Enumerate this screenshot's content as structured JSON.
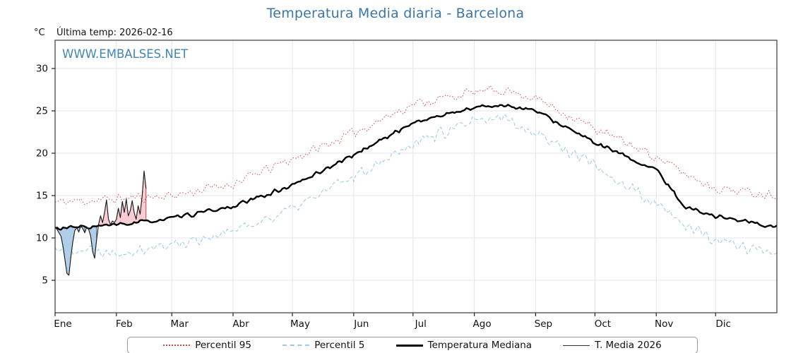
{
  "page": {
    "ylabel_unit": "°C",
    "last_temp_text": "Última temp: 2026-02-16",
    "watermark": "WWW.EMBALSES.NET"
  },
  "chart_data": {
    "type": "line",
    "title": "Temperatura Media diaria - Barcelona",
    "xlabel": "",
    "ylabel": "°C",
    "ylim": [
      3,
      33
    ],
    "x_range_days": [
      0,
      365
    ],
    "grid": true,
    "legend_position": "bottom",
    "x_tick_labels": [
      "Ene",
      "Feb",
      "Mar",
      "Abr",
      "May",
      "Jun",
      "Jul",
      "Ago",
      "Sep",
      "Oct",
      "Nov",
      "Dic"
    ],
    "month_start_days": [
      0,
      31,
      59,
      90,
      120,
      151,
      181,
      212,
      243,
      273,
      304,
      334
    ],
    "y_ticks": [
      5,
      10,
      15,
      20,
      25,
      30
    ],
    "control_days": [
      0,
      31,
      59,
      90,
      120,
      151,
      181,
      212,
      227,
      243,
      273,
      304,
      319,
      334,
      364
    ],
    "series": [
      {
        "name": "Percentil 95",
        "kind": "control",
        "color": "#e04040",
        "style": "dotted",
        "noise": 0.7,
        "values": [
          14.2,
          14.6,
          15.0,
          16.4,
          19.3,
          22.4,
          25.8,
          27.2,
          27.5,
          26.5,
          22.9,
          19.6,
          17.5,
          15.9,
          15.1
        ]
      },
      {
        "name": "Percentil 5",
        "kind": "control",
        "color": "#96cbe0",
        "style": "dashed",
        "noise": 0.85,
        "values": [
          9.0,
          8.4,
          9.2,
          10.8,
          13.4,
          17.3,
          21.3,
          23.6,
          24.2,
          22.4,
          18.6,
          13.8,
          11.5,
          9.6,
          8.3
        ]
      },
      {
        "name": "Temperatura Mediana",
        "kind": "control",
        "color": "#000000",
        "style": "solid-thick",
        "noise": 0.3,
        "values": [
          11.1,
          11.5,
          12.3,
          13.7,
          16.2,
          19.8,
          23.6,
          25.4,
          25.7,
          25.0,
          21.2,
          18.0,
          13.6,
          12.6,
          11.3
        ]
      },
      {
        "name": "T. Media 2026",
        "kind": "daily",
        "color": "#1a1a1a",
        "style": "solid-thin",
        "start_day": 0,
        "values": [
          11.3,
          11.0,
          10.6,
          10.2,
          9.0,
          7.4,
          5.8,
          5.6,
          7.8,
          9.6,
          10.9,
          11.2,
          10.7,
          11.4,
          11.1,
          10.6,
          11.3,
          11.0,
          10.2,
          8.4,
          7.6,
          9.8,
          11.6,
          12.6,
          11.8,
          13.0,
          14.5,
          12.2,
          11.6,
          12.0,
          11.8,
          12.2,
          13.5,
          12.4,
          14.3,
          13.0,
          14.6,
          12.6,
          13.2,
          14.4,
          13.0,
          12.2,
          13.8,
          12.8,
          14.9,
          17.9,
          15.8
        ]
      }
    ],
    "fills": {
      "above_median_color": "#f6c6ce",
      "above_median_edge": "#9c2b2b",
      "below_median_color": "#a9c9e5",
      "below_median_edge": "#27496b"
    },
    "colors": {
      "title": "#3a76a8",
      "watermark": "#4187b5",
      "grid": "#e4e4ec",
      "frame": "#3a3a3a",
      "tick": "#222222",
      "text": "#111111"
    }
  }
}
